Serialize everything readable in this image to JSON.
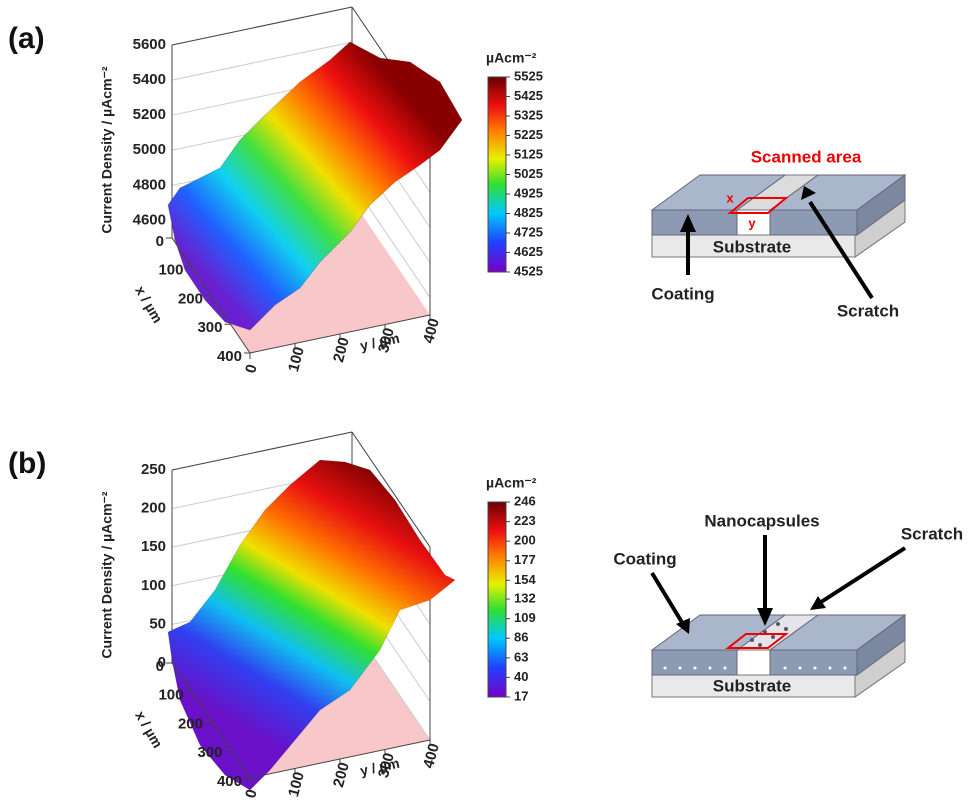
{
  "panels": [
    {
      "label": "(a)",
      "plot": {
        "z_label": "Current Density / µAcm⁻²",
        "zlim": [
          4500,
          5600
        ],
        "zticks": [
          4600,
          4800,
          5000,
          5200,
          5400,
          5600
        ],
        "x_label": "x / µm",
        "xlim": [
          0,
          400
        ],
        "xticks": [
          0,
          100,
          200,
          300,
          400
        ],
        "y_label": "y / µm",
        "ylim": [
          0,
          400
        ],
        "yticks": [
          0,
          100,
          200,
          300,
          400
        ],
        "colorbar": {
          "title": "µAcm⁻²",
          "ticks": [
            5525,
            5425,
            5325,
            5225,
            5125,
            5025,
            4925,
            4825,
            4725,
            4625,
            4525
          ]
        }
      },
      "diagram": {
        "title": "Scanned area",
        "x": "x",
        "y": "y",
        "substrate": "Substrate",
        "coating": "Coating",
        "scratch": "Scratch"
      }
    },
    {
      "label": "(b)",
      "plot": {
        "z_label": "Current Density / µAcm⁻²",
        "zlim": [
          0,
          250
        ],
        "zticks": [
          0,
          50,
          100,
          150,
          200,
          250
        ],
        "x_label": "x / µm",
        "xlim": [
          0,
          400
        ],
        "xticks": [
          0,
          100,
          200,
          300,
          400
        ],
        "y_label": "y / µm",
        "ylim": [
          0,
          400
        ],
        "yticks": [
          0,
          100,
          200,
          300,
          400
        ],
        "colorbar": {
          "title": "µAcm⁻²",
          "ticks": [
            246,
            223,
            200,
            177,
            154,
            132,
            109,
            86,
            63,
            40,
            17
          ]
        }
      },
      "diagram": {
        "nanocapsules": "Nanocapsules",
        "scratch": "Scratch",
        "coating": "Coating",
        "substrate": "Substrate"
      }
    }
  ]
}
